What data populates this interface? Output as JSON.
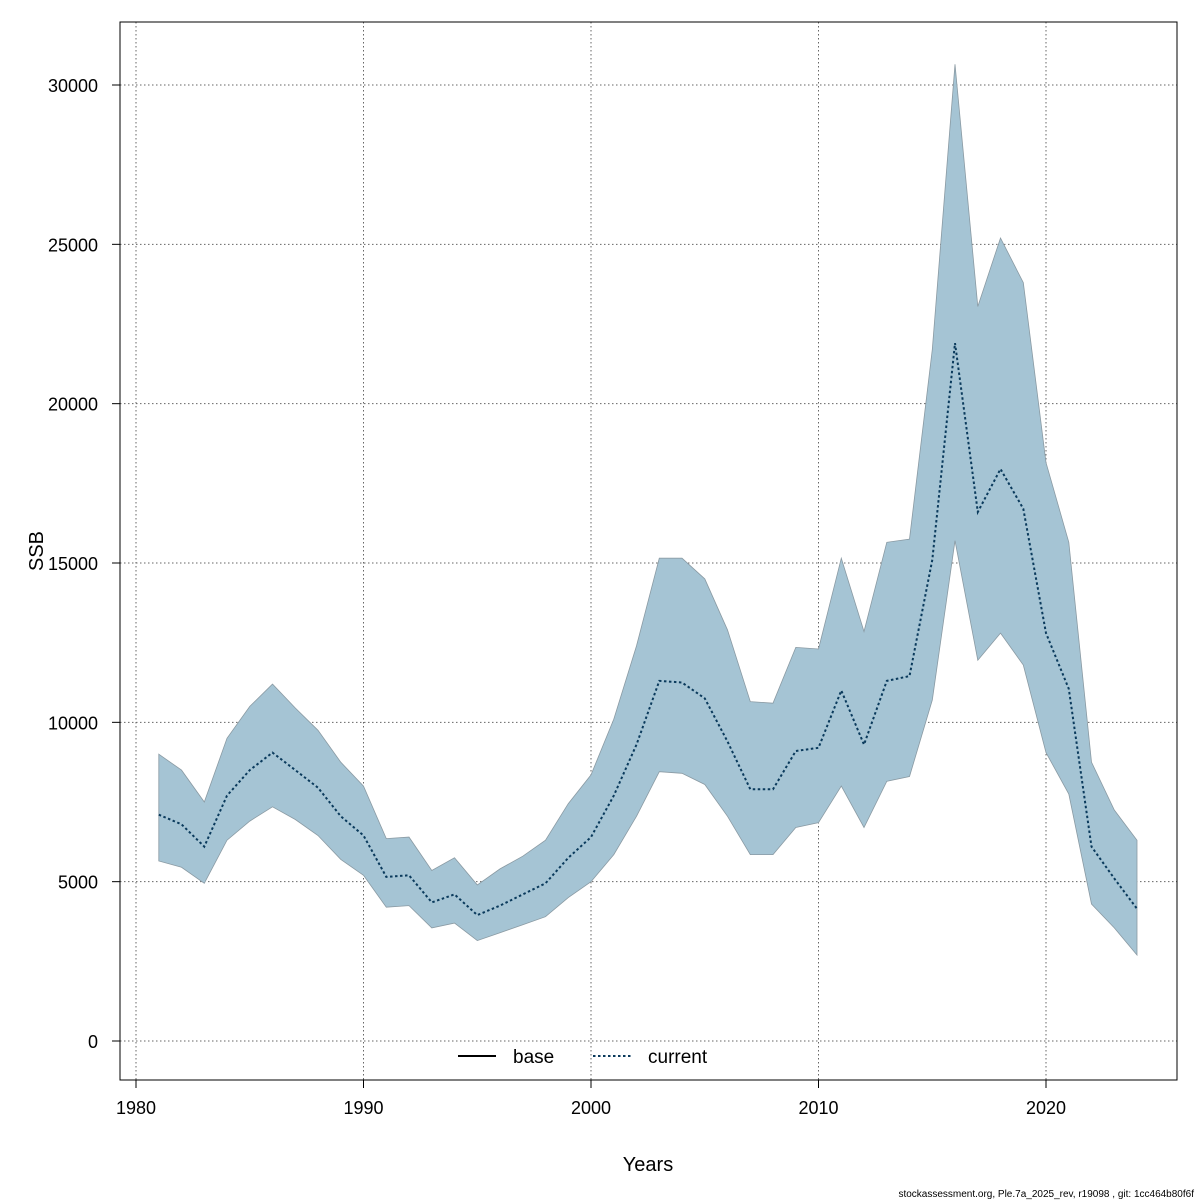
{
  "chart_data": {
    "type": "line",
    "xlabel": "Years",
    "ylabel": "SSB",
    "xlim": [
      1980,
      2025
    ],
    "ylim": [
      -1200,
      32000
    ],
    "x_ticks": [
      1980,
      1990,
      2000,
      2010,
      2020
    ],
    "y_ticks": [
      0,
      5000,
      10000,
      15000,
      20000,
      25000,
      30000
    ],
    "grid": true,
    "legend": {
      "position": "bottom-center",
      "entries": [
        "base",
        "current"
      ]
    },
    "colors": {
      "band": "#a5c4d4",
      "band_edge": "#8a9aa3",
      "current_line": "#0a3a5c",
      "base_line": "#000000"
    },
    "x": [
      1981,
      1982,
      1983,
      1984,
      1985,
      1986,
      1987,
      1988,
      1989,
      1990,
      1991,
      1992,
      1993,
      1994,
      1995,
      1996,
      1997,
      1998,
      1999,
      2000,
      2001,
      2002,
      2003,
      2004,
      2005,
      2006,
      2007,
      2008,
      2009,
      2010,
      2011,
      2012,
      2013,
      2014,
      2015,
      2016,
      2017,
      2018,
      2019,
      2020,
      2021,
      2022,
      2023,
      2024
    ],
    "series": [
      {
        "name": "current",
        "style": "dotted",
        "values": [
          7100,
          6800,
          6100,
          7700,
          8500,
          9050,
          8500,
          7950,
          7050,
          6450,
          5150,
          5200,
          4350,
          4600,
          3950,
          4250,
          4600,
          4950,
          5750,
          6400,
          7700,
          9300,
          11300,
          11250,
          10750,
          9400,
          7900,
          7900,
          9100,
          9200,
          11000,
          9300,
          11300,
          11450,
          15100,
          21900,
          16600,
          17950,
          16700,
          12800,
          11050,
          6100,
          5100,
          4150
        ]
      },
      {
        "name": "confidence band",
        "upper": [
          9000,
          8500,
          7500,
          9500,
          10500,
          11200,
          10450,
          9750,
          8750,
          8000,
          6350,
          6400,
          5350,
          5750,
          4900,
          5400,
          5800,
          6300,
          7450,
          8350,
          10100,
          12400,
          15150,
          15150,
          14500,
          12900,
          10650,
          10600,
          12350,
          12300,
          15150,
          12850,
          15650,
          15750,
          21700,
          30650,
          23050,
          25200,
          23800,
          18150,
          15650,
          8750,
          7250,
          6300
        ],
        "lower": [
          5650,
          5450,
          4950,
          6300,
          6900,
          7350,
          6950,
          6450,
          5700,
          5200,
          4200,
          4250,
          3550,
          3700,
          3150,
          3400,
          3650,
          3900,
          4500,
          5000,
          5850,
          7050,
          8450,
          8400,
          8050,
          7050,
          5850,
          5850,
          6700,
          6850,
          8000,
          6700,
          8150,
          8300,
          10700,
          15700,
          11950,
          12800,
          11800,
          9050,
          7750,
          4300,
          3550,
          2700
        ]
      }
    ],
    "footer": "stockassessment.org, Ple.7a_2025_rev, r19098 , git: 1cc464b80f6f"
  }
}
